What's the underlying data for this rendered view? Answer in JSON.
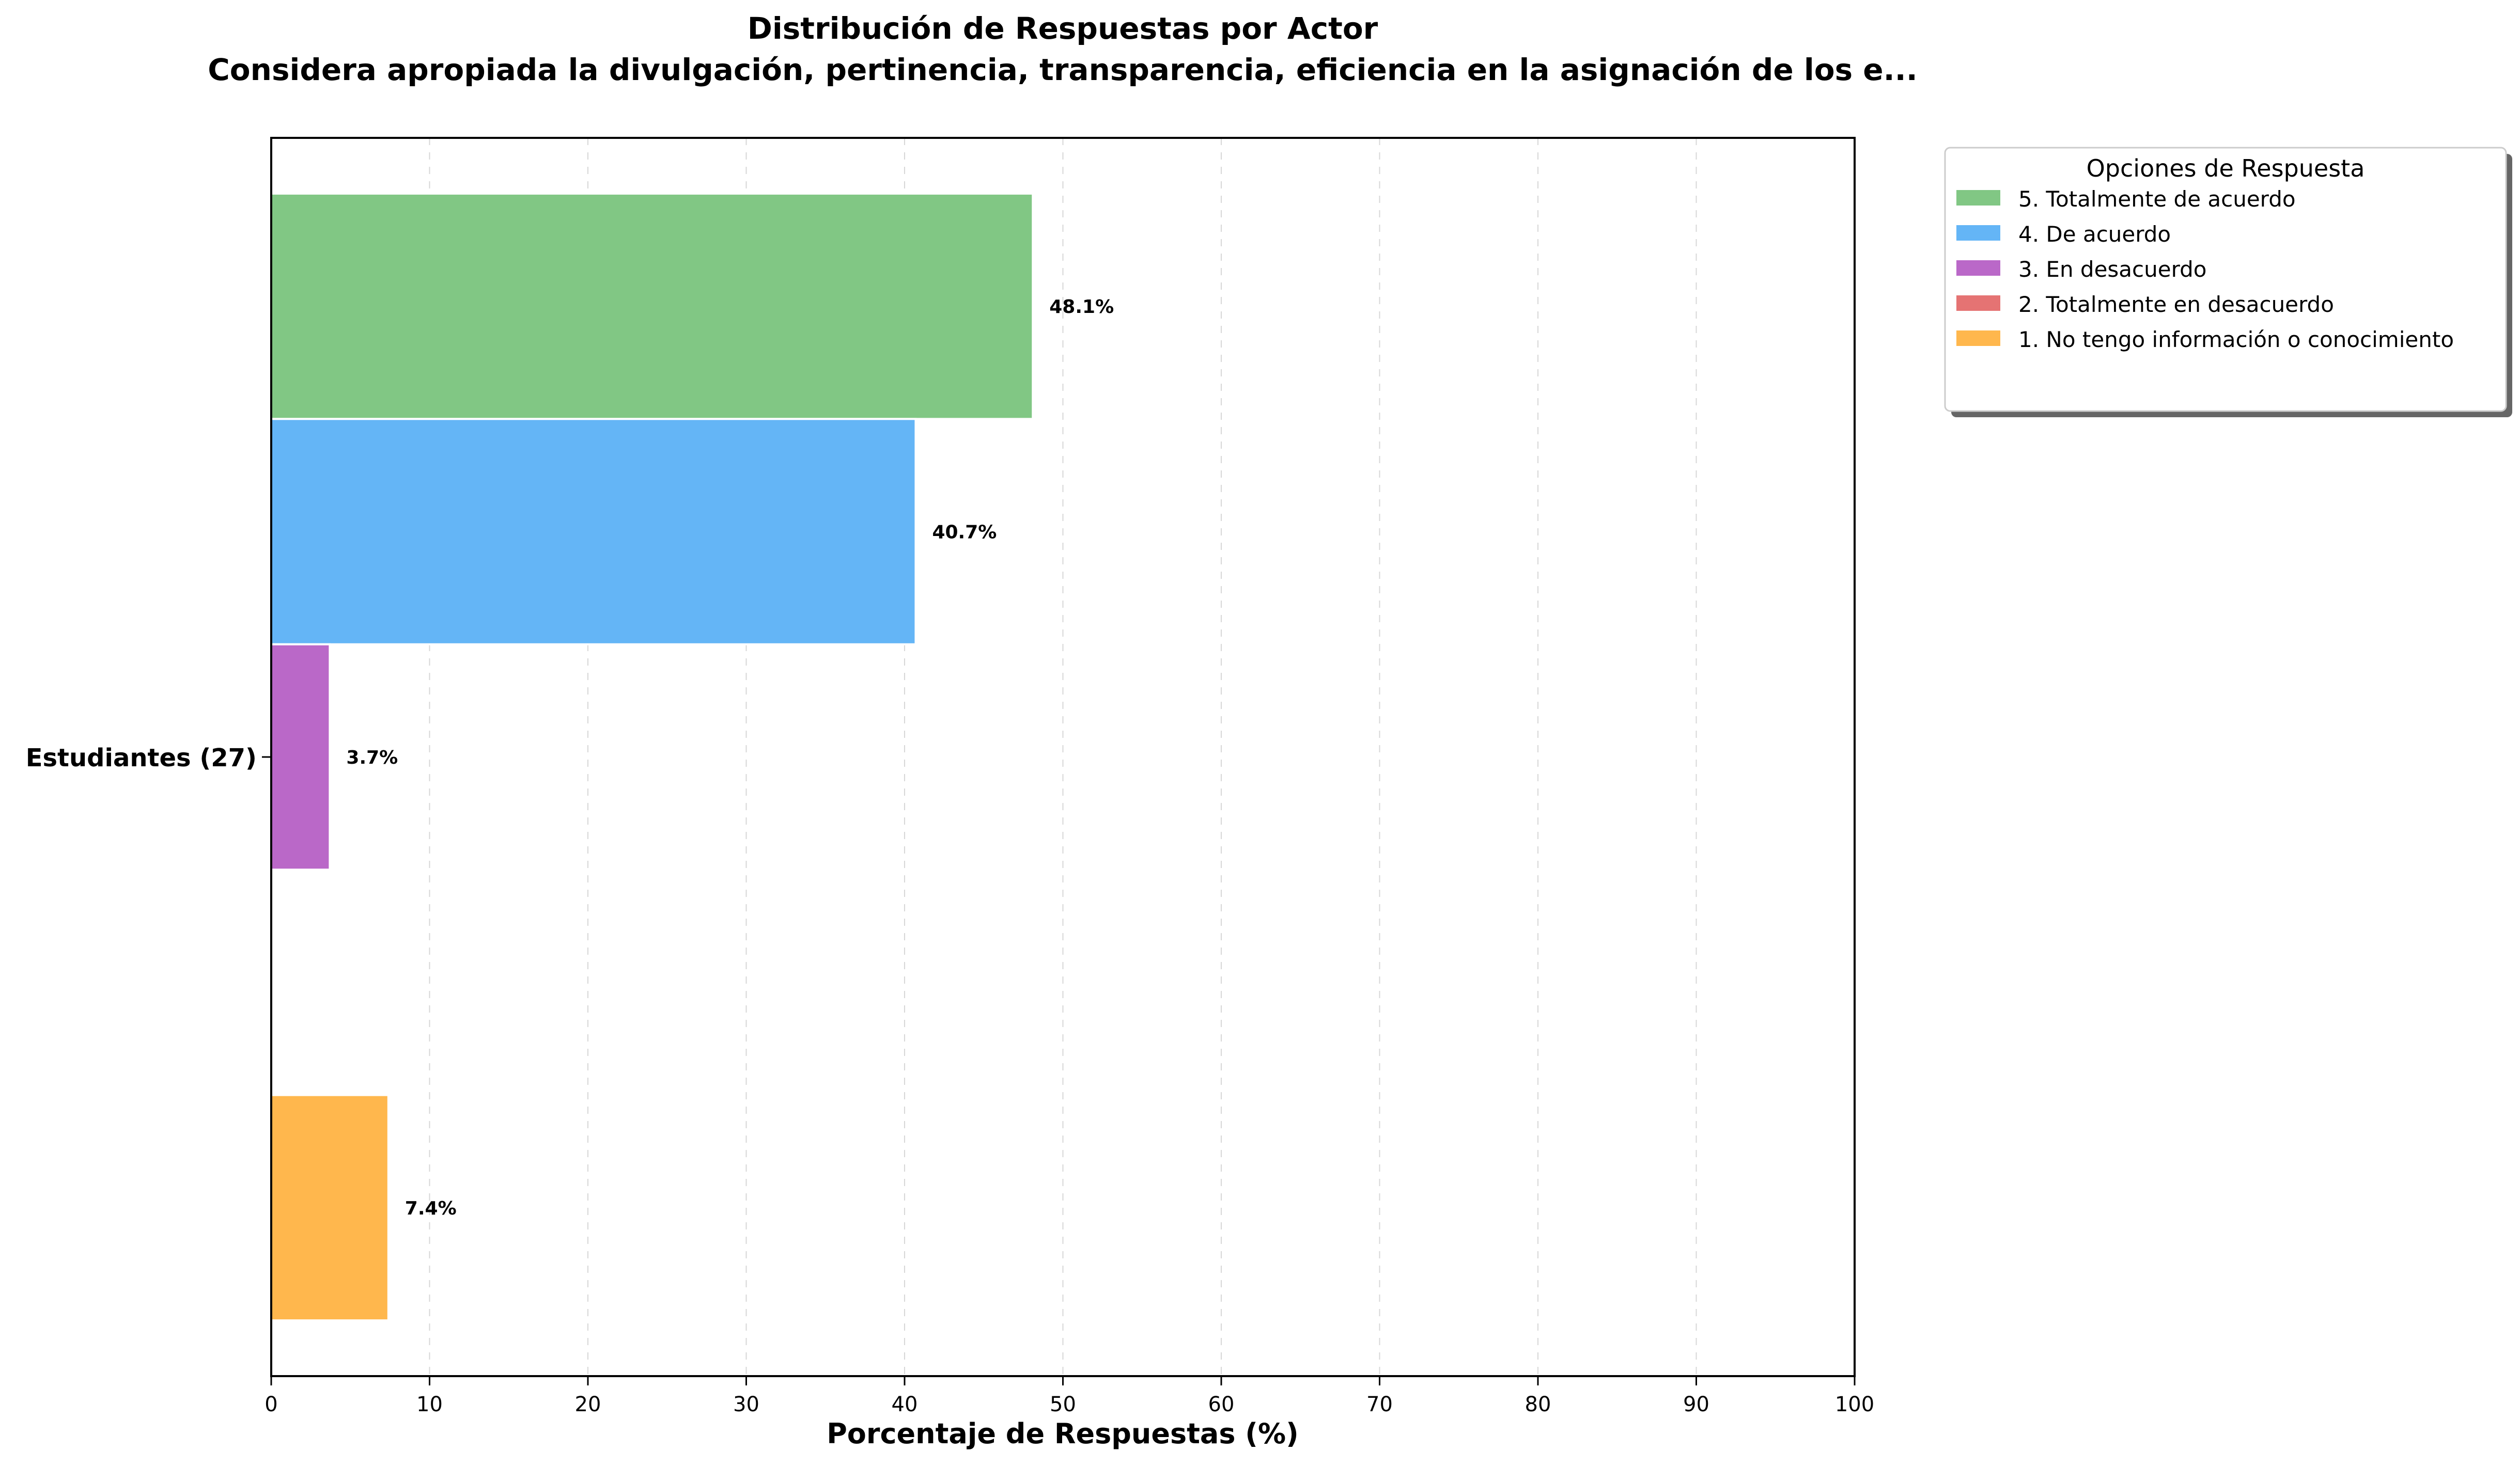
{
  "chart_data": {
    "type": "bar",
    "orientation": "horizontal",
    "title": "Distribución de Respuestas por Actor",
    "subtitle": "Considera apropiada la divulgación, pertinencia, transparencia, eficiencia en la asignación de los e...",
    "xlabel": "Porcentaje de Respuestas (%)",
    "ylabel": "",
    "xlim": [
      0,
      100
    ],
    "xticks": [
      0,
      10,
      20,
      30,
      40,
      50,
      60,
      70,
      80,
      90,
      100
    ],
    "grid": "vertical dashed",
    "categories": [
      "Estudiantes (27)"
    ],
    "series": [
      {
        "name": "5. Totalmente de acuerdo",
        "color": "#81c784",
        "values": [
          48.1
        ],
        "label": "48.1%"
      },
      {
        "name": "4. De acuerdo",
        "color": "#64b5f6",
        "values": [
          40.7
        ],
        "label": "40.7%"
      },
      {
        "name": "3. En desacuerdo",
        "color": "#ba68c8",
        "values": [
          3.7
        ],
        "label": "3.7%"
      },
      {
        "name": "2. Totalmente en desacuerdo",
        "color": "#e57373",
        "values": [
          0
        ],
        "label": ""
      },
      {
        "name": "1. No tengo información o conocimiento",
        "color": "#ffb74d",
        "values": [
          7.4
        ],
        "label": "7.4%"
      }
    ],
    "legend": {
      "title": "Opciones de Respuesta",
      "placement": "outside-top-right"
    }
  }
}
